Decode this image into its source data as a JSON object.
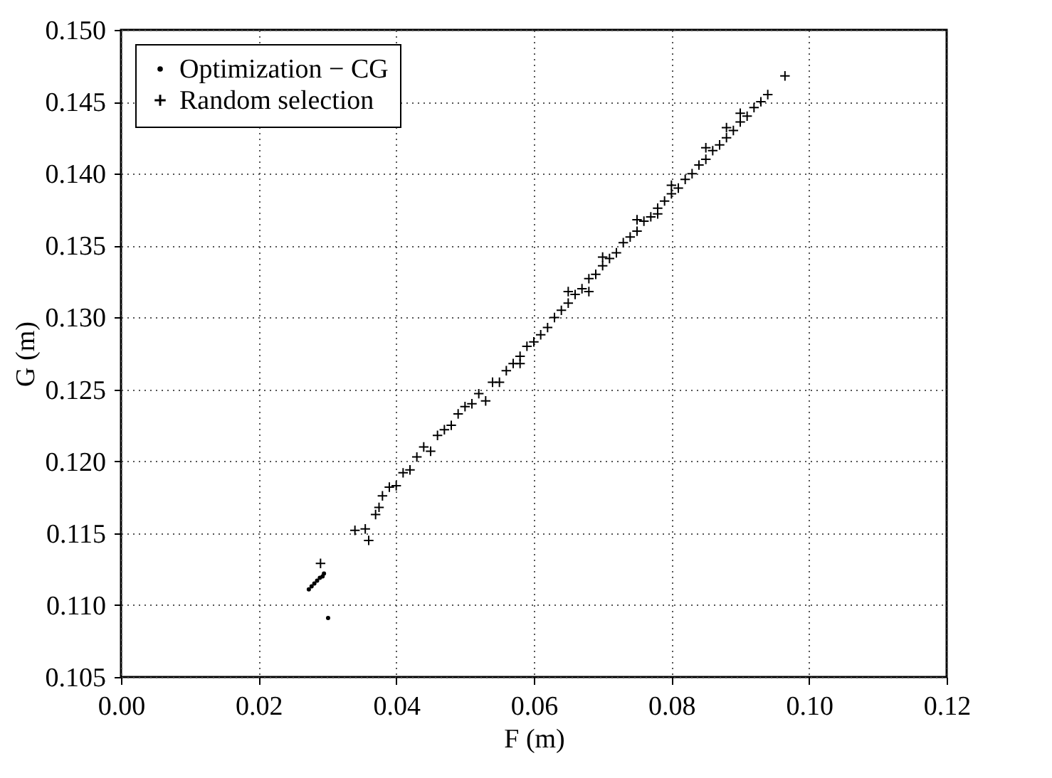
{
  "chart_data": {
    "type": "scatter",
    "xlabel": "F (m)",
    "ylabel": "G (m)",
    "xlim": [
      0,
      0.12
    ],
    "ylim": [
      0.105,
      0.15
    ],
    "xticks": [
      {
        "value": 0,
        "label": "0.00"
      },
      {
        "value": 0.02,
        "label": "0.02"
      },
      {
        "value": 0.04,
        "label": "0.04"
      },
      {
        "value": 0.06,
        "label": "0.06"
      },
      {
        "value": 0.08,
        "label": "0.08"
      },
      {
        "value": 0.1,
        "label": "0.10"
      },
      {
        "value": 0.12,
        "label": "0.12"
      }
    ],
    "yticks": [
      {
        "value": 0.105,
        "label": "0.105"
      },
      {
        "value": 0.11,
        "label": "0.110"
      },
      {
        "value": 0.115,
        "label": "0.115"
      },
      {
        "value": 0.12,
        "label": "0.120"
      },
      {
        "value": 0.125,
        "label": "0.125"
      },
      {
        "value": 0.13,
        "label": "0.130"
      },
      {
        "value": 0.135,
        "label": "0.135"
      },
      {
        "value": 0.14,
        "label": "0.140"
      },
      {
        "value": 0.145,
        "label": "0.145"
      },
      {
        "value": 0.15,
        "label": "0.150"
      }
    ],
    "grid": true,
    "legend": "top left",
    "series": [
      {
        "name": "Optimization − CG",
        "color": "#000000",
        "marker": "circle",
        "x": [
          0.0273,
          0.0277,
          0.0281,
          0.0285,
          0.0289,
          0.0293,
          0.0295,
          0.0301
        ],
        "values": [
          0.1111,
          0.1113,
          0.1115,
          0.1117,
          0.1119,
          0.112,
          0.1122,
          0.1091
        ]
      },
      {
        "name": "Random selection",
        "color": "#000000",
        "marker": "cross",
        "x": [
          0.029,
          0.034,
          0.0355,
          0.036,
          0.037,
          0.0375,
          0.038,
          0.039,
          0.04,
          0.041,
          0.042,
          0.043,
          0.044,
          0.045,
          0.046,
          0.047,
          0.048,
          0.049,
          0.05,
          0.051,
          0.052,
          0.053,
          0.054,
          0.055,
          0.056,
          0.057,
          0.058,
          0.059,
          0.06,
          0.061,
          0.062,
          0.063,
          0.064,
          0.065,
          0.066,
          0.067,
          0.068,
          0.069,
          0.07,
          0.071,
          0.072,
          0.073,
          0.074,
          0.075,
          0.076,
          0.077,
          0.078,
          0.079,
          0.08,
          0.081,
          0.082,
          0.083,
          0.084,
          0.085,
          0.086,
          0.087,
          0.088,
          0.089,
          0.09,
          0.091,
          0.092,
          0.093,
          0.094,
          0.0965,
          0.065,
          0.07,
          0.075,
          0.08,
          0.085,
          0.09,
          0.058,
          0.068,
          0.078,
          0.088
        ],
        "values": [
          0.1129,
          0.1152,
          0.1153,
          0.1145,
          0.1163,
          0.1168,
          0.1176,
          0.1182,
          0.1183,
          0.1192,
          0.1194,
          0.1203,
          0.121,
          0.1207,
          0.1218,
          0.1222,
          0.1225,
          0.1233,
          0.1238,
          0.124,
          0.1247,
          0.1242,
          0.1255,
          0.1255,
          0.1263,
          0.1268,
          0.1273,
          0.128,
          0.1283,
          0.1288,
          0.1293,
          0.13,
          0.1305,
          0.131,
          0.1316,
          0.132,
          0.1327,
          0.133,
          0.1336,
          0.1341,
          0.1345,
          0.1352,
          0.1356,
          0.136,
          0.1367,
          0.137,
          0.1376,
          0.1381,
          0.1386,
          0.139,
          0.1396,
          0.14,
          0.1406,
          0.141,
          0.1416,
          0.142,
          0.1425,
          0.143,
          0.1436,
          0.144,
          0.1446,
          0.145,
          0.1455,
          0.1468,
          0.1318,
          0.1342,
          0.1368,
          0.1392,
          0.1418,
          0.1442,
          0.1268,
          0.1318,
          0.1372,
          0.1432
        ]
      }
    ]
  }
}
